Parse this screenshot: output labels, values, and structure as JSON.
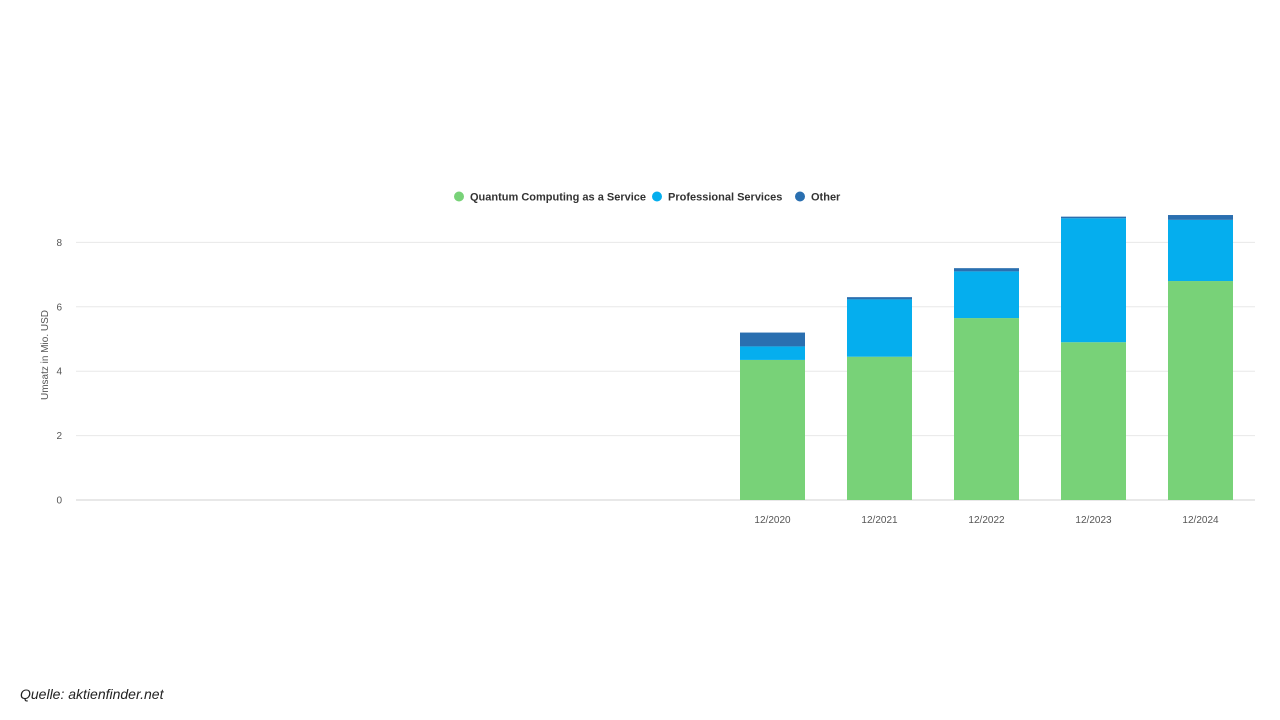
{
  "chart_data": {
    "type": "bar",
    "stacked": true,
    "categories": [
      "12/2020",
      "12/2021",
      "12/2022",
      "12/2023",
      "12/2024"
    ],
    "series": [
      {
        "name": "Quantum Computing as a Service",
        "color": "#78d278",
        "values": [
          4.35,
          4.45,
          5.65,
          4.9,
          6.8
        ]
      },
      {
        "name": "Professional Services",
        "color": "#05aeee",
        "values": [
          0.42,
          1.78,
          1.45,
          3.85,
          1.9
        ]
      },
      {
        "name": "Other",
        "color": "#2a6fb0",
        "values": [
          0.43,
          0.07,
          0.1,
          0.05,
          0.15
        ]
      }
    ],
    "ylabel": "Umsatz in Mio. USD",
    "ylim": [
      0,
      8.6
    ],
    "yticks": [
      0,
      2,
      4,
      6,
      8
    ],
    "grid": true,
    "legend_position": "top-center"
  },
  "source_text": "Quelle: aktienfinder.net"
}
